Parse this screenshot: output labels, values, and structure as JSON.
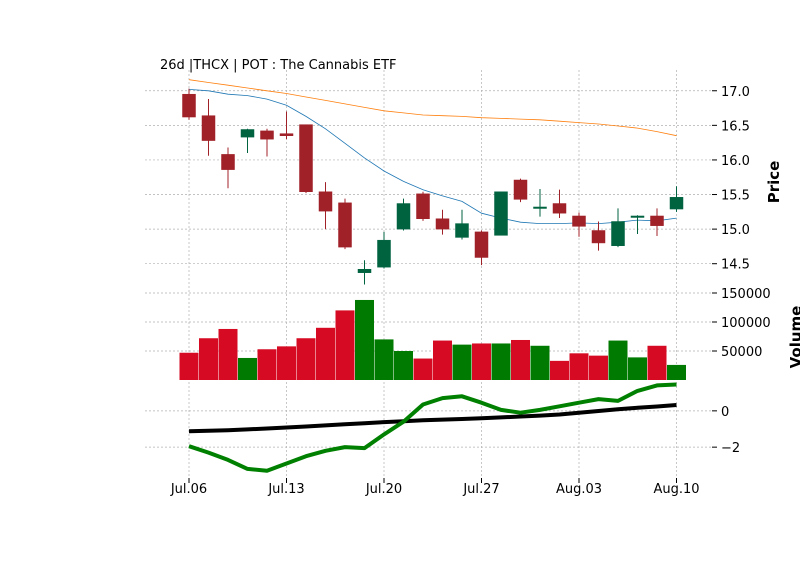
{
  "chart_data": {
    "type": "candlestick",
    "title": "26d |THCX | POT : The Cannabis ETF",
    "colors": {
      "up": "#006340",
      "down": "#A02128",
      "vol_up": "#007a00",
      "vol_down": "#d60a22",
      "ma_short": "#1f77b4",
      "ma_long": "#ff7f0e",
      "osc_fast": "#008000",
      "osc_slow": "#000000"
    },
    "x_tick_labels": [
      "Jul.06",
      "Jul.13",
      "Jul.20",
      "Jul.27",
      "Aug.03",
      "Aug.10"
    ],
    "x_tick_index": [
      0,
      5,
      10,
      15,
      20,
      25
    ],
    "price_panel": {
      "ylabel": "Price",
      "ylim": [
        14.12,
        17.3
      ],
      "ticks": [
        14.5,
        15.0,
        15.5,
        16.0,
        16.5,
        17.0
      ],
      "tick_labels": [
        "14.5",
        "15.0",
        "15.5",
        "16.0",
        "16.5",
        "17.0"
      ],
      "candles": [
        {
          "o": 16.95,
          "h": 17.03,
          "l": 16.58,
          "c": 16.62
        },
        {
          "o": 16.64,
          "h": 16.88,
          "l": 16.06,
          "c": 16.28
        },
        {
          "o": 16.08,
          "h": 16.18,
          "l": 15.59,
          "c": 15.86
        },
        {
          "o": 16.33,
          "h": 16.45,
          "l": 16.1,
          "c": 16.44
        },
        {
          "o": 16.42,
          "h": 16.45,
          "l": 16.05,
          "c": 16.3
        },
        {
          "o": 16.38,
          "h": 16.7,
          "l": 16.3,
          "c": 16.35
        },
        {
          "o": 16.51,
          "h": 16.51,
          "l": 15.52,
          "c": 15.54
        },
        {
          "o": 15.54,
          "h": 15.68,
          "l": 15.0,
          "c": 15.26
        },
        {
          "o": 15.38,
          "h": 15.44,
          "l": 14.71,
          "c": 14.74
        },
        {
          "o": 14.37,
          "h": 14.55,
          "l": 14.2,
          "c": 14.42
        },
        {
          "o": 14.45,
          "h": 14.96,
          "l": 14.43,
          "c": 14.84
        },
        {
          "o": 15.0,
          "h": 15.44,
          "l": 14.98,
          "c": 15.37
        },
        {
          "o": 15.51,
          "h": 15.54,
          "l": 15.12,
          "c": 15.15
        },
        {
          "o": 15.15,
          "h": 15.28,
          "l": 14.92,
          "c": 15.0
        },
        {
          "o": 14.88,
          "h": 15.28,
          "l": 14.85,
          "c": 15.08
        },
        {
          "o": 14.96,
          "h": 14.98,
          "l": 14.48,
          "c": 14.59
        },
        {
          "o": 14.91,
          "h": 15.54,
          "l": 14.91,
          "c": 15.54
        },
        {
          "o": 15.71,
          "h": 15.73,
          "l": 15.39,
          "c": 15.43
        },
        {
          "o": 15.3,
          "h": 15.58,
          "l": 15.18,
          "c": 15.32
        },
        {
          "o": 15.37,
          "h": 15.57,
          "l": 15.16,
          "c": 15.23
        },
        {
          "o": 15.19,
          "h": 15.24,
          "l": 14.89,
          "c": 15.04
        },
        {
          "o": 14.98,
          "h": 15.11,
          "l": 14.69,
          "c": 14.8
        },
        {
          "o": 14.76,
          "h": 15.3,
          "l": 14.74,
          "c": 15.11
        },
        {
          "o": 15.17,
          "h": 15.2,
          "l": 14.93,
          "c": 15.19
        },
        {
          "o": 15.19,
          "h": 15.3,
          "l": 14.9,
          "c": 15.05
        },
        {
          "o": 15.29,
          "h": 15.62,
          "l": 15.25,
          "c": 15.46
        }
      ],
      "ma_short": [
        17.02,
        17.0,
        16.95,
        16.93,
        16.88,
        16.79,
        16.63,
        16.45,
        16.24,
        16.03,
        15.84,
        15.69,
        15.57,
        15.48,
        15.4,
        15.23,
        15.16,
        15.1,
        15.08,
        15.08,
        15.09,
        15.08,
        15.1,
        15.13,
        15.12,
        15.16
      ],
      "ma_long": [
        17.16,
        17.12,
        17.08,
        17.04,
        17.0,
        16.96,
        16.91,
        16.86,
        16.81,
        16.76,
        16.71,
        16.68,
        16.65,
        16.64,
        16.63,
        16.61,
        16.6,
        16.59,
        16.58,
        16.56,
        16.54,
        16.52,
        16.49,
        16.46,
        16.41,
        16.35
      ]
    },
    "volume_panel": {
      "ylabel": "Volume",
      "ylim": [
        0,
        150000
      ],
      "ticks": [
        50000,
        100000,
        150000
      ],
      "tick_labels": [
        "50000",
        "100000",
        "150000"
      ],
      "values": [
        47000,
        72000,
        88000,
        38000,
        53000,
        58000,
        72000,
        90000,
        120000,
        138000,
        70000,
        50000,
        37000,
        68000,
        61000,
        63000,
        63000,
        69000,
        59000,
        33000,
        46000,
        42000,
        68000,
        39000,
        59000,
        26000
      ]
    },
    "oscillator_panel": {
      "ylim": [
        -3.7,
        1.7
      ],
      "ticks": [
        -2,
        0
      ],
      "tick_labels": [
        "−2",
        "0"
      ],
      "fast": [
        -1.95,
        -2.3,
        -2.7,
        -3.2,
        -3.3,
        -2.9,
        -2.5,
        -2.2,
        -2.0,
        -2.05,
        -1.3,
        -0.6,
        0.35,
        0.7,
        0.8,
        0.45,
        0.05,
        -0.1,
        0.05,
        0.25,
        0.45,
        0.65,
        0.55,
        1.1,
        1.4,
        1.45
      ],
      "slow": [
        -1.12,
        -1.1,
        -1.07,
        -1.02,
        -0.97,
        -0.92,
        -0.86,
        -0.8,
        -0.74,
        -0.68,
        -0.62,
        -0.57,
        -0.52,
        -0.48,
        -0.45,
        -0.41,
        -0.36,
        -0.31,
        -0.26,
        -0.2,
        -0.11,
        -0.01,
        0.09,
        0.17,
        0.24,
        0.32
      ]
    }
  }
}
